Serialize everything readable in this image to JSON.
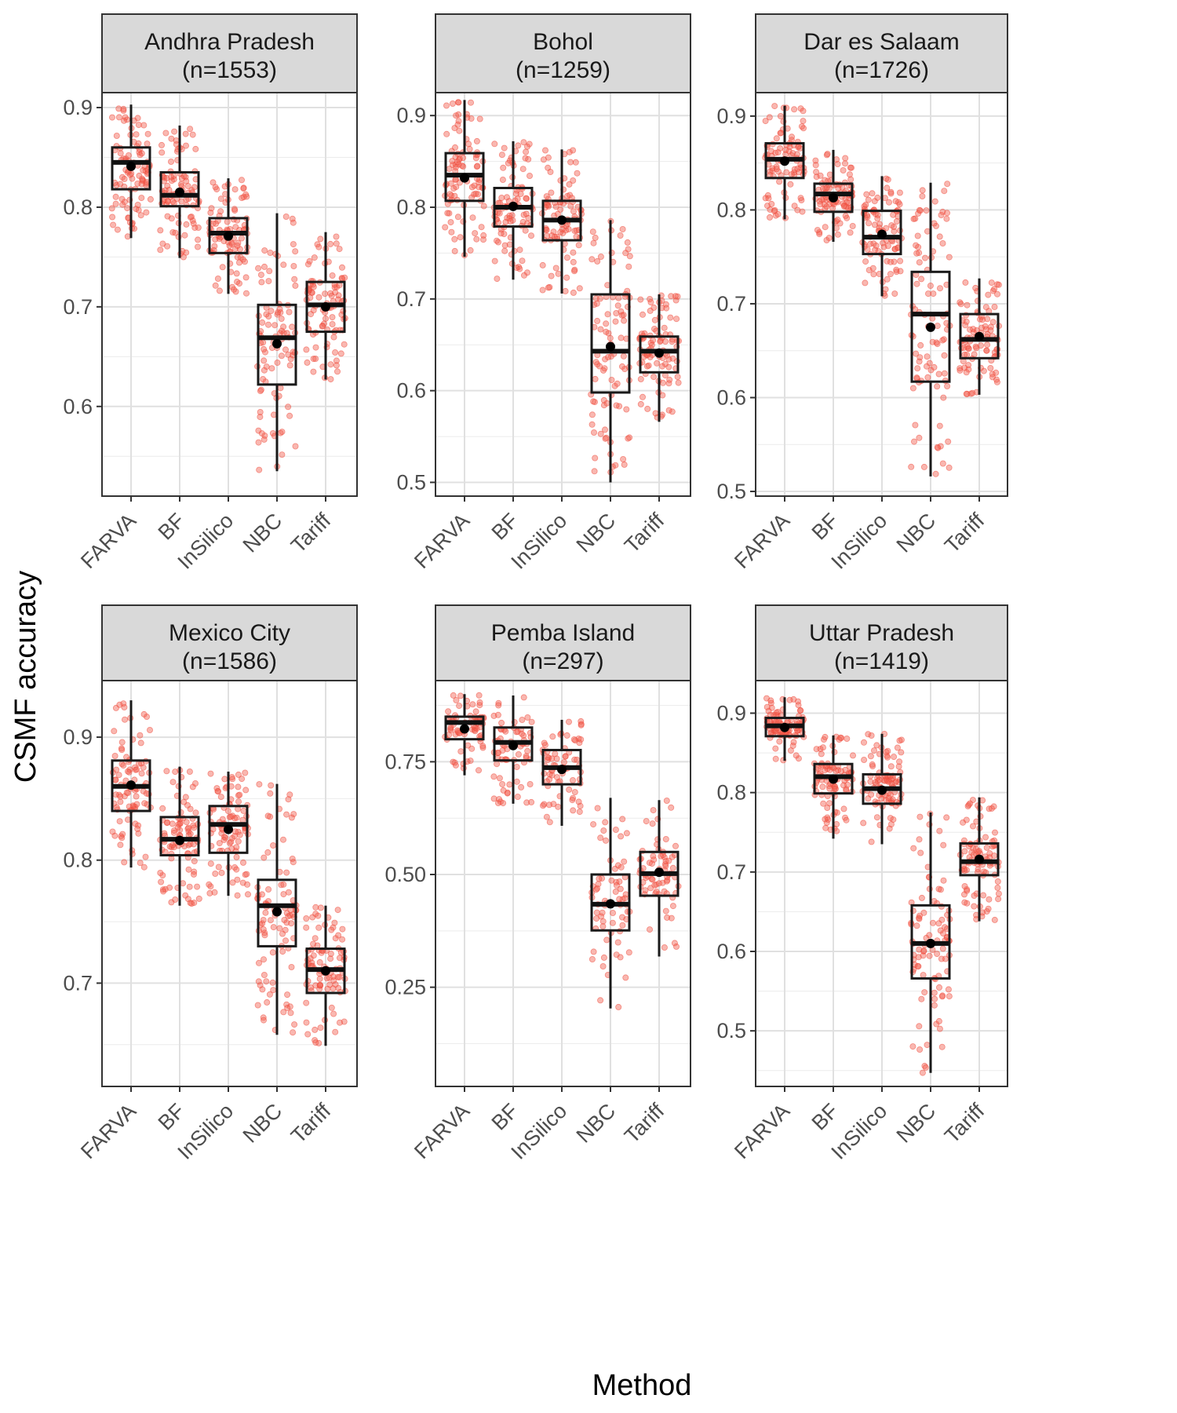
{
  "chart_data": {
    "type": "boxplot",
    "xlabel": "Method",
    "ylabel": "CSMF accuracy",
    "categories": [
      "FARVA",
      "BF",
      "InSilico",
      "NBC",
      "Tariff"
    ],
    "panels": [
      {
        "name": "Andhra Pradesh",
        "n_label": "(n=1553)",
        "ylim": [
          0.51,
          0.915
        ],
        "ticks": [
          0.6,
          0.7,
          0.8,
          0.9
        ],
        "tick_labels": [
          "0.6",
          "0.7",
          "0.8",
          "0.9"
        ],
        "boxes": [
          {
            "min": 0.769,
            "q1": 0.818,
            "median": 0.845,
            "q3": 0.86,
            "max": 0.903,
            "mean": 0.841
          },
          {
            "min": 0.749,
            "q1": 0.801,
            "median": 0.812,
            "q3": 0.835,
            "max": 0.882,
            "mean": 0.815
          },
          {
            "min": 0.713,
            "q1": 0.754,
            "median": 0.774,
            "q3": 0.789,
            "max": 0.829,
            "mean": 0.771
          },
          {
            "min": 0.535,
            "q1": 0.622,
            "median": 0.669,
            "q3": 0.702,
            "max": 0.794,
            "mean": 0.663
          },
          {
            "min": 0.627,
            "q1": 0.675,
            "median": 0.702,
            "q3": 0.725,
            "max": 0.775,
            "mean": 0.7
          }
        ]
      },
      {
        "name": "Bohol",
        "n_label": "(n=1259)",
        "ylim": [
          0.485,
          0.925
        ],
        "ticks": [
          0.5,
          0.6,
          0.7,
          0.8,
          0.9
        ],
        "tick_labels": [
          "0.5",
          "0.6",
          "0.7",
          "0.8",
          "0.9"
        ],
        "boxes": [
          {
            "min": 0.746,
            "q1": 0.807,
            "median": 0.835,
            "q3": 0.859,
            "max": 0.917,
            "mean": 0.832
          },
          {
            "min": 0.721,
            "q1": 0.779,
            "median": 0.8,
            "q3": 0.821,
            "max": 0.872,
            "mean": 0.801
          },
          {
            "min": 0.706,
            "q1": 0.764,
            "median": 0.786,
            "q3": 0.807,
            "max": 0.863,
            "mean": 0.786
          },
          {
            "min": 0.5,
            "q1": 0.598,
            "median": 0.643,
            "q3": 0.705,
            "max": 0.786,
            "mean": 0.648
          },
          {
            "min": 0.566,
            "q1": 0.62,
            "median": 0.643,
            "q3": 0.659,
            "max": 0.705,
            "mean": 0.641
          }
        ]
      },
      {
        "name": "Dar es Salaam",
        "n_label": "(n=1726)",
        "ylim": [
          0.495,
          0.925
        ],
        "ticks": [
          0.5,
          0.6,
          0.7,
          0.8,
          0.9
        ],
        "tick_labels": [
          "0.5",
          "0.6",
          "0.7",
          "0.8",
          "0.9"
        ],
        "boxes": [
          {
            "min": 0.79,
            "q1": 0.834,
            "median": 0.854,
            "q3": 0.871,
            "max": 0.911,
            "mean": 0.852
          },
          {
            "min": 0.766,
            "q1": 0.798,
            "median": 0.817,
            "q3": 0.828,
            "max": 0.864,
            "mean": 0.813
          },
          {
            "min": 0.708,
            "q1": 0.753,
            "median": 0.771,
            "q3": 0.799,
            "max": 0.836,
            "mean": 0.774
          },
          {
            "min": 0.516,
            "q1": 0.617,
            "median": 0.689,
            "q3": 0.734,
            "max": 0.829,
            "mean": 0.675
          },
          {
            "min": 0.603,
            "q1": 0.642,
            "median": 0.662,
            "q3": 0.689,
            "max": 0.727,
            "mean": 0.665
          }
        ]
      },
      {
        "name": "Mexico City",
        "n_label": "(n=1586)",
        "ylim": [
          0.616,
          0.946
        ],
        "ticks": [
          0.7,
          0.8,
          0.9
        ],
        "tick_labels": [
          "0.7",
          "0.8",
          "0.9"
        ],
        "boxes": [
          {
            "min": 0.794,
            "q1": 0.84,
            "median": 0.86,
            "q3": 0.881,
            "max": 0.93,
            "mean": 0.861
          },
          {
            "min": 0.763,
            "q1": 0.804,
            "median": 0.817,
            "q3": 0.835,
            "max": 0.876,
            "mean": 0.816
          },
          {
            "min": 0.771,
            "q1": 0.806,
            "median": 0.829,
            "q3": 0.844,
            "max": 0.872,
            "mean": 0.825
          },
          {
            "min": 0.658,
            "q1": 0.73,
            "median": 0.763,
            "q3": 0.784,
            "max": 0.862,
            "mean": 0.758
          },
          {
            "min": 0.649,
            "q1": 0.692,
            "median": 0.711,
            "q3": 0.728,
            "max": 0.763,
            "mean": 0.71
          }
        ]
      },
      {
        "name": "Pemba Island",
        "n_label": "(n=297)",
        "ylim": [
          0.03,
          0.93
        ],
        "ticks": [
          0.25,
          0.5,
          0.75
        ],
        "tick_labels": [
          "0.25",
          "0.50",
          "0.75"
        ],
        "boxes": [
          {
            "min": 0.72,
            "q1": 0.8,
            "median": 0.837,
            "q3": 0.85,
            "max": 0.9,
            "mean": 0.823
          },
          {
            "min": 0.657,
            "q1": 0.753,
            "median": 0.793,
            "q3": 0.826,
            "max": 0.897,
            "mean": 0.786
          },
          {
            "min": 0.608,
            "q1": 0.7,
            "median": 0.737,
            "q3": 0.776,
            "max": 0.843,
            "mean": 0.733
          },
          {
            "min": 0.203,
            "q1": 0.376,
            "median": 0.434,
            "q3": 0.5,
            "max": 0.67,
            "mean": 0.435
          },
          {
            "min": 0.318,
            "q1": 0.453,
            "median": 0.502,
            "q3": 0.55,
            "max": 0.665,
            "mean": 0.505
          }
        ]
      },
      {
        "name": "Uttar Pradesh",
        "n_label": "(n=1419)",
        "ylim": [
          0.43,
          0.941
        ],
        "ticks": [
          0.5,
          0.6,
          0.7,
          0.8,
          0.9
        ],
        "tick_labels": [
          "0.5",
          "0.6",
          "0.7",
          "0.8",
          "0.9"
        ],
        "boxes": [
          {
            "min": 0.84,
            "q1": 0.871,
            "median": 0.884,
            "q3": 0.894,
            "max": 0.92,
            "mean": 0.882
          },
          {
            "min": 0.742,
            "q1": 0.799,
            "median": 0.82,
            "q3": 0.836,
            "max": 0.872,
            "mean": 0.817
          },
          {
            "min": 0.735,
            "q1": 0.786,
            "median": 0.805,
            "q3": 0.823,
            "max": 0.874,
            "mean": 0.803
          },
          {
            "min": 0.447,
            "q1": 0.566,
            "median": 0.61,
            "q3": 0.658,
            "max": 0.775,
            "mean": 0.61
          },
          {
            "min": 0.638,
            "q1": 0.696,
            "median": 0.713,
            "q3": 0.736,
            "max": 0.794,
            "mean": 0.716
          }
        ]
      }
    ]
  }
}
